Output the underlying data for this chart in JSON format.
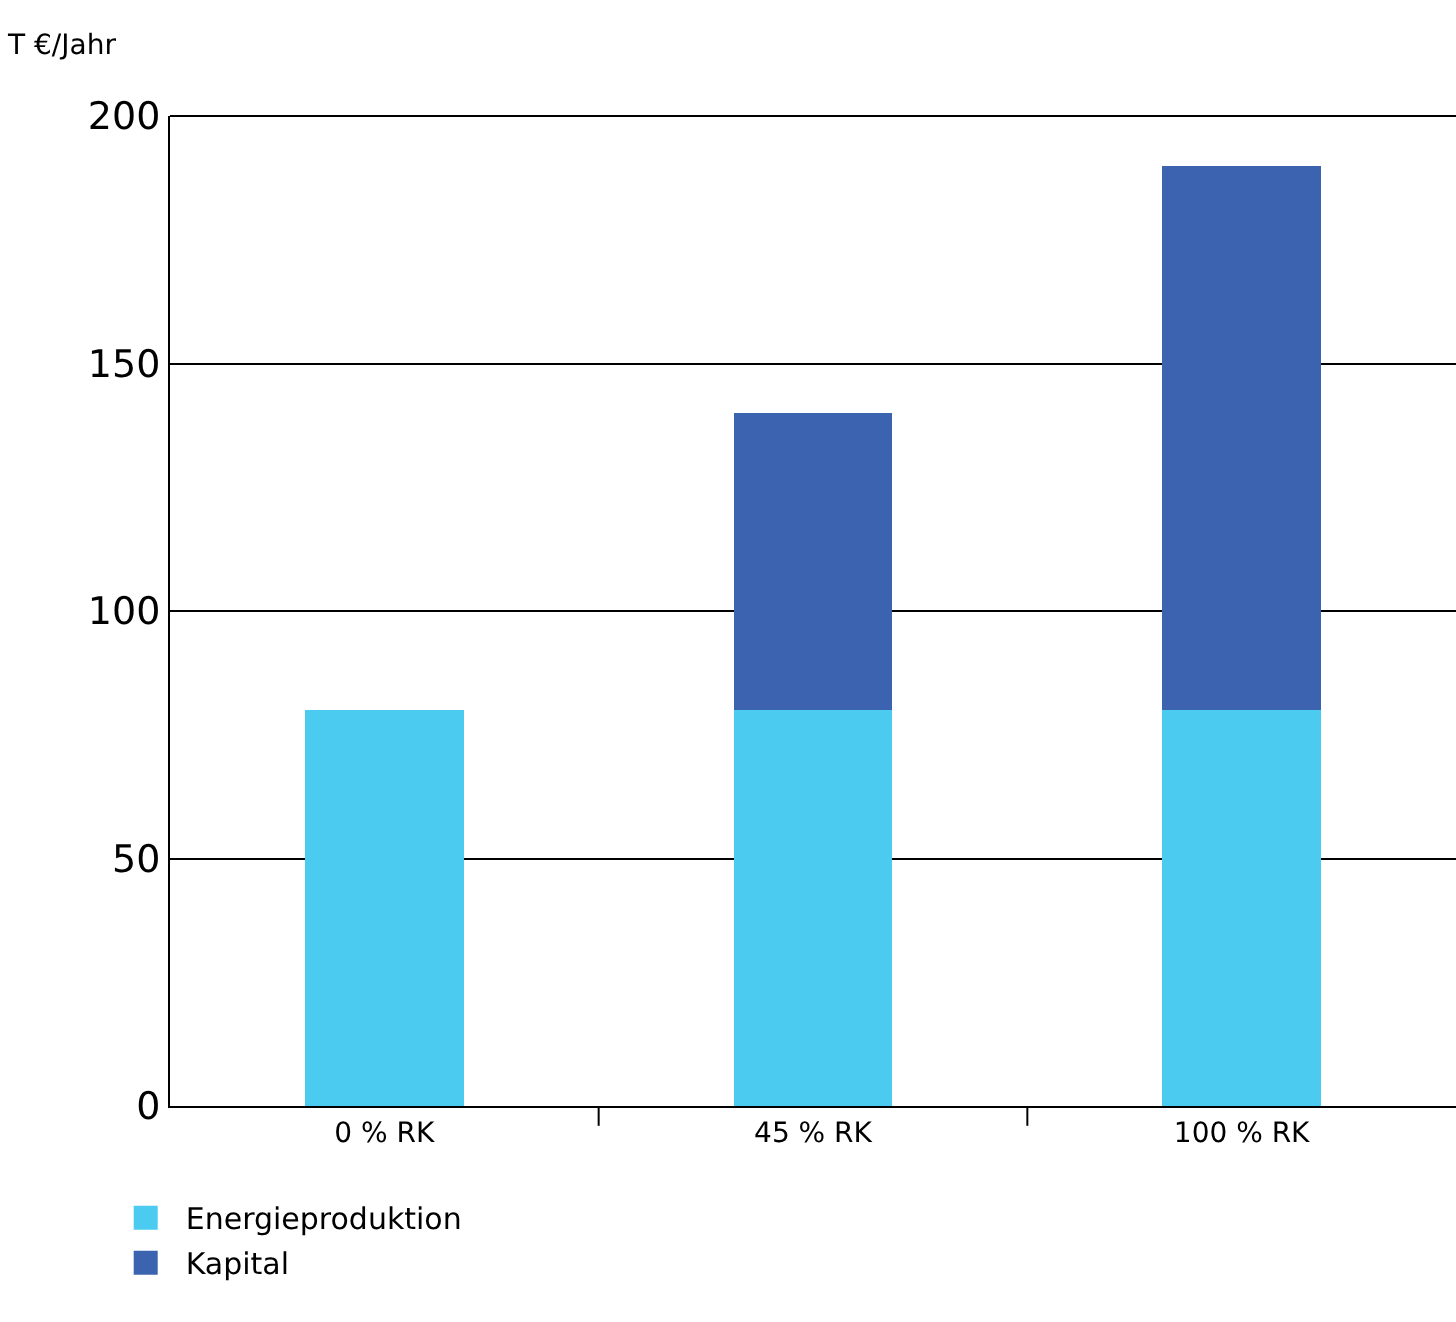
{
  "chart_data": {
    "type": "bar",
    "stacked": true,
    "ylabel": "T €/Jahr",
    "categories": [
      "0 % RK",
      "45 % RK",
      "100 % RK"
    ],
    "series": [
      {
        "name": "Energieproduktion",
        "color": "#4ccbf0",
        "values": [
          80,
          80,
          80
        ]
      },
      {
        "name": "Kapital",
        "color": "#3b63b0",
        "values": [
          null,
          60,
          110
        ]
      }
    ],
    "ylim": [
      0,
      200
    ],
    "yticks": [
      0,
      50,
      100,
      150,
      200
    ],
    "grid": "y",
    "legend": "bottom left"
  }
}
